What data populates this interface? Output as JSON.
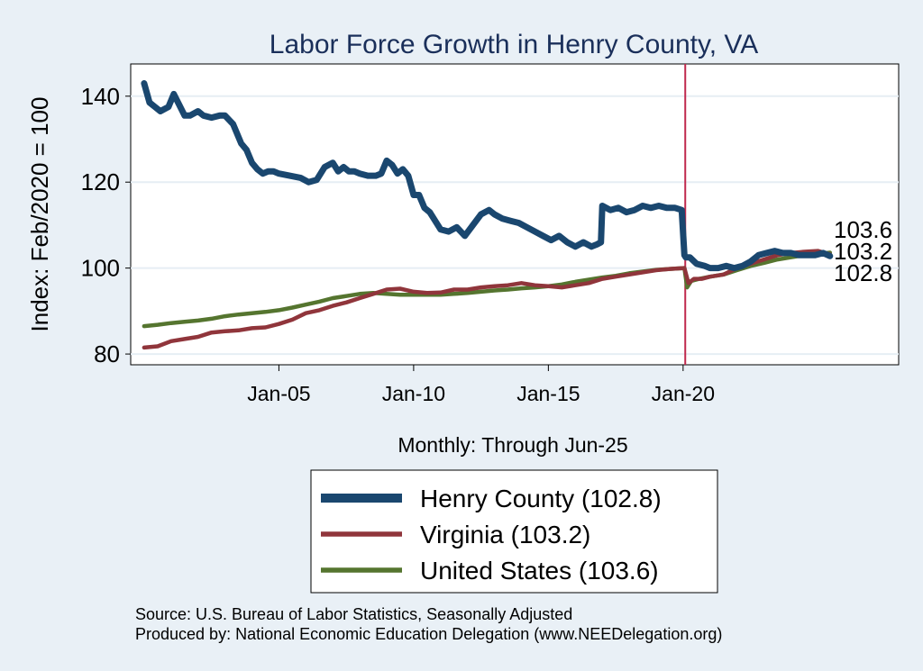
{
  "chart_data": {
    "type": "line",
    "title": "Labor Force Growth in Henry  County, VA",
    "xlabel": "Monthly: Through Jun-25",
    "ylabel": "Index: Feb/2020 = 100",
    "xlim": [
      1999.5,
      2028.0
    ],
    "ylim": [
      77.5,
      147.5
    ],
    "x_ticks": [
      {
        "label": "Jan-05",
        "value": 2005.0
      },
      {
        "label": "Jan-10",
        "value": 2010.0
      },
      {
        "label": "Jan-15",
        "value": 2015.0
      },
      {
        "label": "Jan-20",
        "value": 2020.0
      }
    ],
    "y_ticks": [
      80,
      100,
      120,
      140
    ],
    "gridlines": true,
    "reference_line": {
      "x": 2020.08,
      "color": "#c0294d"
    },
    "end_labels": [
      "103.6",
      "103.2",
      "102.8"
    ],
    "legend_position": "bottom",
    "series": [
      {
        "name": "Henry  County",
        "legend_label": "Henry  County (102.8)",
        "color": "#1a476f",
        "width": 7,
        "x": [
          2000.0,
          2000.2,
          2000.4,
          2000.6,
          2000.9,
          2001.1,
          2001.3,
          2001.5,
          2001.7,
          2002.0,
          2002.2,
          2002.5,
          2002.8,
          2003.0,
          2003.3,
          2003.6,
          2003.8,
          2004.0,
          2004.2,
          2004.4,
          2004.6,
          2004.8,
          2005.0,
          2005.4,
          2005.8,
          2006.1,
          2006.4,
          2006.7,
          2007.0,
          2007.2,
          2007.4,
          2007.6,
          2007.8,
          2008.0,
          2008.3,
          2008.6,
          2008.8,
          2009.0,
          2009.2,
          2009.4,
          2009.6,
          2009.8,
          2010.0,
          2010.2,
          2010.4,
          2010.6,
          2010.8,
          2011.0,
          2011.3,
          2011.6,
          2011.9,
          2012.2,
          2012.5,
          2012.8,
          2013.0,
          2013.3,
          2013.6,
          2013.9,
          2014.2,
          2014.5,
          2014.8,
          2015.1,
          2015.4,
          2015.7,
          2016.0,
          2016.3,
          2016.6,
          2016.8,
          2016.95,
          2017.0,
          2017.3,
          2017.6,
          2017.9,
          2018.2,
          2018.5,
          2018.8,
          2019.1,
          2019.4,
          2019.7,
          2019.95,
          2020.05,
          2020.1,
          2020.25,
          2020.5,
          2020.8,
          2021.0,
          2021.3,
          2021.6,
          2021.9,
          2022.2,
          2022.5,
          2022.8,
          2023.1,
          2023.4,
          2023.7,
          2024.0,
          2024.3,
          2024.6,
          2024.9,
          2025.2,
          2025.45
        ],
        "values": [
          143,
          138.5,
          137.5,
          136.5,
          137.5,
          140.5,
          138,
          135.5,
          135.5,
          136.5,
          135.5,
          135,
          135.5,
          135.5,
          133.5,
          129,
          127.5,
          124.5,
          123,
          122,
          122.5,
          122.5,
          122,
          121.5,
          121,
          120,
          120.5,
          123.5,
          124.5,
          122.5,
          123.5,
          122.5,
          122.5,
          122,
          121.5,
          121.5,
          122,
          125,
          124,
          122,
          123,
          121.5,
          117,
          117,
          114,
          113,
          111,
          109,
          108.5,
          109.5,
          107.5,
          110,
          112.5,
          113.5,
          112.5,
          111.5,
          111,
          110.5,
          109.5,
          108.5,
          107.5,
          106.5,
          107.5,
          106,
          105,
          106,
          105,
          105.5,
          106,
          114.5,
          113.5,
          114,
          113,
          113.5,
          114.5,
          114,
          114.5,
          114,
          114,
          113.5,
          103,
          102.5,
          102.5,
          101,
          100.5,
          100,
          100,
          100.5,
          100,
          100.5,
          101.5,
          103,
          103.5,
          104,
          103.5,
          103.5,
          103,
          103,
          103,
          103.5,
          102.8
        ]
      },
      {
        "name": "Virginia",
        "legend_label": "Virginia (103.2)",
        "color": "#90353b",
        "width": 4.5,
        "x": [
          2000,
          2000.5,
          2001,
          2001.5,
          2002,
          2002.5,
          2003,
          2003.5,
          2004,
          2004.5,
          2005,
          2005.5,
          2006,
          2006.5,
          2007,
          2007.5,
          2008,
          2008.5,
          2009,
          2009.5,
          2010,
          2010.5,
          2011,
          2011.5,
          2012,
          2012.5,
          2013,
          2013.5,
          2014,
          2014.5,
          2015,
          2015.5,
          2016,
          2016.5,
          2017,
          2017.5,
          2018,
          2018.5,
          2019,
          2019.5,
          2020.05,
          2020.2,
          2020.4,
          2020.7,
          2021,
          2021.5,
          2022,
          2022.5,
          2023,
          2023.5,
          2024,
          2024.5,
          2025,
          2025.45
        ],
        "values": [
          81.5,
          81.8,
          83,
          83.5,
          84,
          85,
          85.3,
          85.5,
          86,
          86.2,
          87,
          88,
          89.5,
          90.2,
          91.2,
          92,
          93,
          94,
          95,
          95.2,
          94.5,
          94.2,
          94.3,
          95,
          95,
          95.5,
          95.8,
          96,
          96.5,
          96,
          95.8,
          95.5,
          96,
          96.5,
          97.5,
          98,
          98.5,
          99,
          99.5,
          99.8,
          100,
          96.5,
          97.5,
          97.5,
          98,
          98.5,
          100,
          101,
          102,
          103,
          103.5,
          103.8,
          104,
          103.2
        ]
      },
      {
        "name": "United States",
        "legend_label": "United States (103.6)",
        "color": "#55752f",
        "width": 4.5,
        "x": [
          2000,
          2000.5,
          2001,
          2001.5,
          2002,
          2002.5,
          2003,
          2003.5,
          2004,
          2004.5,
          2005,
          2005.5,
          2006,
          2006.5,
          2007,
          2007.5,
          2008,
          2008.5,
          2009,
          2009.5,
          2010,
          2010.5,
          2011,
          2011.5,
          2012,
          2012.5,
          2013,
          2013.5,
          2014,
          2014.5,
          2015,
          2015.5,
          2016,
          2016.5,
          2017,
          2017.5,
          2018,
          2018.5,
          2019,
          2019.5,
          2020.05,
          2020.15,
          2020.3,
          2020.6,
          2021,
          2021.5,
          2022,
          2022.5,
          2023,
          2023.5,
          2024,
          2024.5,
          2025,
          2025.45
        ],
        "values": [
          86.5,
          86.8,
          87.2,
          87.5,
          87.8,
          88.2,
          88.8,
          89.2,
          89.5,
          89.8,
          90.2,
          90.8,
          91.5,
          92.2,
          93,
          93.5,
          94,
          94.2,
          94,
          93.8,
          93.8,
          93.8,
          93.8,
          94,
          94.2,
          94.5,
          94.8,
          95,
          95.3,
          95.5,
          95.8,
          96.2,
          96.8,
          97.3,
          97.8,
          98.2,
          98.8,
          99.2,
          99.6,
          99.8,
          100,
          95.5,
          97,
          97.5,
          98,
          98.5,
          99.5,
          100.5,
          101.2,
          102,
          102.5,
          103,
          103.3,
          103.6
        ]
      }
    ]
  },
  "footer": {
    "source": "Source: U.S. Bureau of Labor Statistics, Seasonally Adjusted",
    "produced_by": "Produced by: National Economic Education Delegation (www.NEEDelegation.org)"
  }
}
